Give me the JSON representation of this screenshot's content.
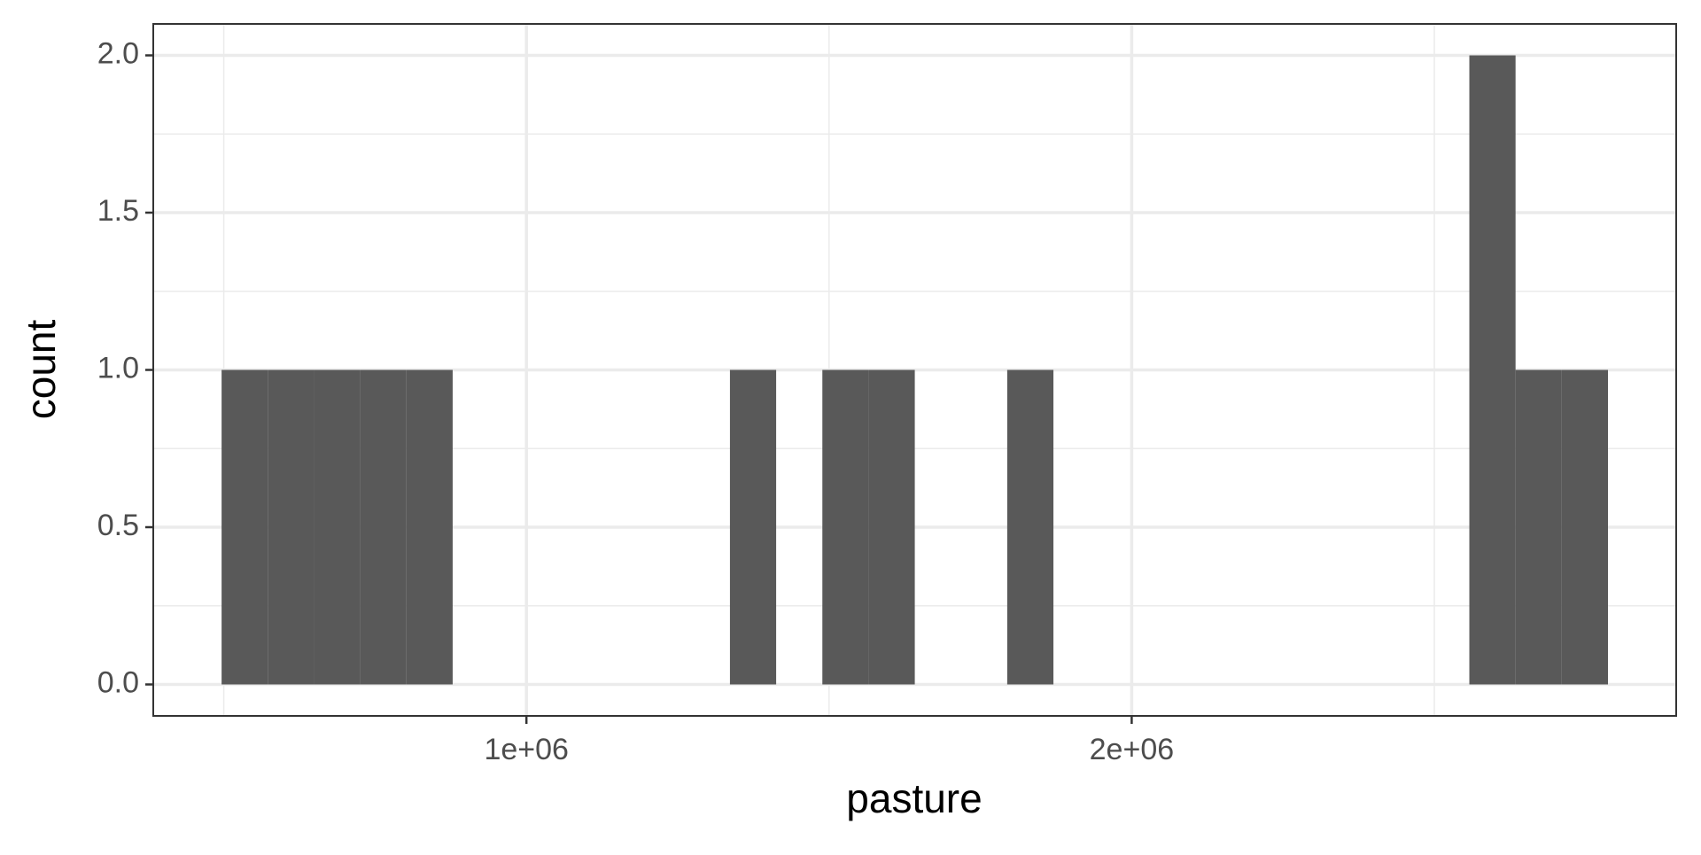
{
  "chart_data": {
    "type": "histogram",
    "x_label": "pasture",
    "y_label": "count",
    "color": "#595959",
    "bins": [
      496400,
      572750,
      649100,
      725450,
      801800,
      878150,
      954500,
      1030850,
      1107200,
      1183550,
      1259900,
      1336250,
      1412600,
      1488950,
      1565300,
      1641650,
      1718000,
      1794350,
      1870700,
      1947050,
      2023400,
      2099750,
      2176100,
      2252450,
      2328800,
      2405150,
      2481500,
      2557850,
      2634200,
      2710550,
      2786900
    ],
    "values": [
      1,
      1,
      1,
      1,
      1,
      0,
      0,
      0,
      0,
      0,
      0,
      1,
      0,
      1,
      1,
      0,
      0,
      1,
      0,
      0,
      0,
      0,
      0,
      0,
      0,
      0,
      0,
      2,
      1,
      1
    ],
    "xlim": [
      383500,
      2899600
    ],
    "xticks": [
      {
        "value": 1000000,
        "label": "1e+06"
      },
      {
        "value": 2000000,
        "label": "2e+06"
      }
    ],
    "x_minor_grid": [
      500000,
      1500000,
      2500000
    ],
    "ylim": [
      -0.1,
      2.1
    ],
    "yticks": [
      {
        "value": 0,
        "label": "0.0"
      },
      {
        "value": 0.5,
        "label": "0.5"
      },
      {
        "value": 1,
        "label": "1.0"
      },
      {
        "value": 1.5,
        "label": "1.5"
      },
      {
        "value": 2,
        "label": "2.0"
      }
    ],
    "y_minor_grid": [
      0.25,
      0.75,
      1.25,
      1.75
    ],
    "grid": true
  }
}
